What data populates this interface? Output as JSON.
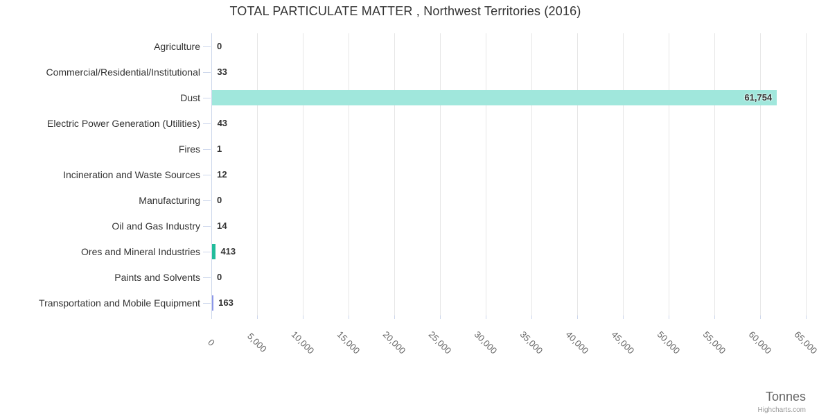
{
  "credit": "Highcharts.com",
  "chart_data": {
    "type": "bar",
    "orientation": "horizontal",
    "title": "TOTAL PARTICULATE MATTER , Northwest Territories (2016)",
    "categories": [
      "Agriculture",
      "Commercial/Residential/Institutional",
      "Dust",
      "Electric Power Generation (Utilities)",
      "Fires",
      "Incineration and Waste Sources",
      "Manufacturing",
      "Oil and Gas Industry",
      "Ores and Mineral Industries",
      "Paints and Solvents",
      "Transportation and Mobile Equipment"
    ],
    "values": [
      0,
      33,
      61754,
      43,
      1,
      12,
      0,
      14,
      413,
      0,
      163
    ],
    "value_labels": [
      "0",
      "33",
      "61,754",
      "43",
      "1",
      "12",
      "0",
      "14",
      "413",
      "0",
      "163"
    ],
    "point_colors": [
      null,
      null,
      "#a0e7dc",
      null,
      null,
      null,
      null,
      null,
      "#21bc9b",
      null,
      "#8c96e8"
    ],
    "xlabel": "Tonnes",
    "xlim": [
      0,
      65000
    ],
    "xticks": [
      0,
      5000,
      10000,
      15000,
      20000,
      25000,
      30000,
      35000,
      40000,
      45000,
      50000,
      55000,
      60000,
      65000
    ],
    "xtick_labels": [
      "0",
      "5,000",
      "10,000",
      "15,000",
      "20,000",
      "25,000",
      "30,000",
      "35,000",
      "40,000",
      "45,000",
      "50,000",
      "55,000",
      "60,000",
      "65,000"
    ],
    "grid": true,
    "legend": "none",
    "colors": {
      "grid": "#e6e6e6",
      "axis": "#ccd6eb",
      "title_text": "#333333",
      "category_text": "#333333",
      "value_text": "#333333",
      "tick_text": "#666666",
      "axis_title_text": "#666666",
      "credit_text": "#999999",
      "default_bar": "#a0e7dc"
    }
  }
}
